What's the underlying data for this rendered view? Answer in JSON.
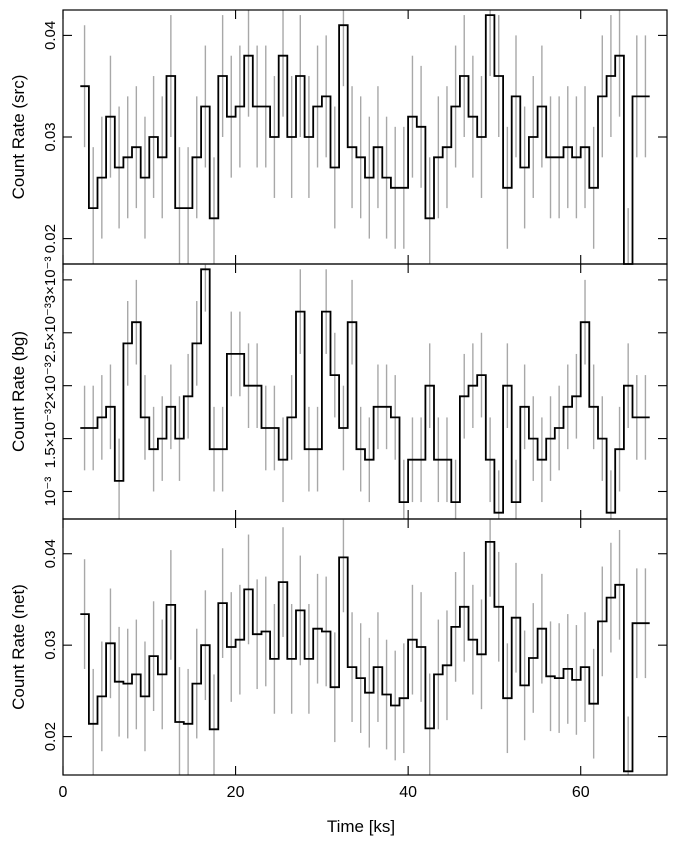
{
  "figure": {
    "xlabel": "Time [ks]"
  },
  "chart_data": [
    {
      "type": "line",
      "step": true,
      "ylabel": "Count Rate (src)",
      "xlim": [
        0,
        70
      ],
      "ylim": [
        0.0175,
        0.0425
      ],
      "yticks": [
        0.02,
        0.03,
        0.04
      ],
      "ytick_labels": [
        "0.02",
        "0.03",
        "0.04"
      ],
      "xticks": [
        0,
        20,
        40,
        60
      ],
      "xtick_labels": [
        "0",
        "20",
        "40",
        "60"
      ],
      "show_xtick_labels": false,
      "bin_width_ks": 1,
      "series": [
        {
          "x": [
            2.5,
            3.5,
            4.5,
            5.5,
            6.5,
            7.5,
            8.5,
            9.5,
            10.5,
            11.5,
            12.5,
            13.5,
            14.5,
            15.5,
            16.5,
            17.5,
            18.5,
            19.5,
            20.5,
            21.5,
            22.5,
            23.5,
            24.5,
            25.5,
            26.5,
            27.5,
            28.5,
            29.5,
            30.5,
            31.5,
            32.5,
            33.5,
            34.5,
            35.5,
            36.5,
            37.5,
            38.5,
            39.5,
            40.5,
            41.5,
            42.5,
            43.5,
            44.5,
            45.5,
            46.5,
            47.5,
            48.5,
            49.5,
            50.5,
            51.5,
            52.5,
            53.5,
            54.5,
            55.5,
            56.5,
            57.5,
            58.5,
            59.5,
            60.5,
            61.5,
            62.5,
            63.5,
            64.5,
            65.5,
            66.5,
            67.5
          ],
          "y": [
            0.035,
            0.023,
            0.026,
            0.032,
            0.027,
            0.028,
            0.029,
            0.026,
            0.03,
            0.028,
            0.036,
            0.023,
            0.023,
            0.028,
            0.033,
            0.022,
            0.036,
            0.032,
            0.033,
            0.038,
            0.033,
            0.033,
            0.03,
            0.038,
            0.03,
            0.036,
            0.03,
            0.033,
            0.034,
            0.027,
            0.041,
            0.029,
            0.028,
            0.026,
            0.029,
            0.026,
            0.025,
            0.025,
            0.032,
            0.031,
            0.022,
            0.028,
            0.029,
            0.033,
            0.036,
            0.032,
            0.03,
            0.042,
            0.036,
            0.025,
            0.034,
            0.027,
            0.03,
            0.033,
            0.028,
            0.028,
            0.029,
            0.028,
            0.029,
            0.025,
            0.034,
            0.036,
            0.038,
            0.017,
            0.034,
            0.034
          ],
          "err": [
            0.006,
            0.006,
            0.006,
            0.006,
            0.006,
            0.006,
            0.006,
            0.006,
            0.006,
            0.006,
            0.006,
            0.006,
            0.006,
            0.006,
            0.006,
            0.006,
            0.006,
            0.006,
            0.006,
            0.006,
            0.006,
            0.006,
            0.006,
            0.006,
            0.006,
            0.006,
            0.006,
            0.006,
            0.006,
            0.006,
            0.006,
            0.006,
            0.006,
            0.006,
            0.006,
            0.006,
            0.006,
            0.006,
            0.006,
            0.006,
            0.006,
            0.006,
            0.006,
            0.006,
            0.006,
            0.006,
            0.006,
            0.006,
            0.006,
            0.006,
            0.006,
            0.006,
            0.006,
            0.006,
            0.006,
            0.006,
            0.006,
            0.006,
            0.006,
            0.006,
            0.006,
            0.006,
            0.006,
            0.006,
            0.006,
            0.006
          ]
        }
      ]
    },
    {
      "type": "line",
      "step": true,
      "ylabel": "Count Rate (bg)",
      "xlim": [
        0,
        70
      ],
      "ylim": [
        0.00074,
        0.00315
      ],
      "yticks": [
        0.001,
        0.0015,
        0.002,
        0.0025,
        0.003
      ],
      "ytick_labels": [
        "10⁻³",
        "1.5×10⁻³",
        "2×10⁻³",
        "2.5×10⁻³",
        "3×10⁻³"
      ],
      "xticks": [
        0,
        20,
        40,
        60
      ],
      "xtick_labels": [
        "0",
        "20",
        "40",
        "60"
      ],
      "show_xtick_labels": false,
      "bin_width_ks": 1,
      "series": [
        {
          "x": [
            2.5,
            3.5,
            4.5,
            5.5,
            6.5,
            7.5,
            8.5,
            9.5,
            10.5,
            11.5,
            12.5,
            13.5,
            14.5,
            15.5,
            16.5,
            17.5,
            18.5,
            19.5,
            20.5,
            21.5,
            22.5,
            23.5,
            24.5,
            25.5,
            26.5,
            27.5,
            28.5,
            29.5,
            30.5,
            31.5,
            32.5,
            33.5,
            34.5,
            35.5,
            36.5,
            37.5,
            38.5,
            39.5,
            40.5,
            41.5,
            42.5,
            43.5,
            44.5,
            45.5,
            46.5,
            47.5,
            48.5,
            49.5,
            50.5,
            51.5,
            52.5,
            53.5,
            54.5,
            55.5,
            56.5,
            57.5,
            58.5,
            59.5,
            60.5,
            61.5,
            62.5,
            63.5,
            64.5,
            65.5,
            66.5,
            67.5
          ],
          "y": [
            0.0016,
            0.0016,
            0.0017,
            0.0018,
            0.0011,
            0.0024,
            0.0026,
            0.0017,
            0.0014,
            0.0015,
            0.0018,
            0.0015,
            0.0019,
            0.0024,
            0.0031,
            0.0014,
            0.0014,
            0.0023,
            0.0023,
            0.002,
            0.002,
            0.0016,
            0.0016,
            0.0013,
            0.0017,
            0.0027,
            0.0014,
            0.0014,
            0.0027,
            0.0021,
            0.0016,
            0.0026,
            0.0014,
            0.0013,
            0.0018,
            0.0018,
            0.0017,
            0.0009,
            0.0013,
            0.0013,
            0.002,
            0.0013,
            0.0013,
            0.0009,
            0.0019,
            0.002,
            0.0021,
            0.0013,
            0.0008,
            0.002,
            0.0009,
            0.0018,
            0.0015,
            0.0013,
            0.0015,
            0.0016,
            0.0018,
            0.0019,
            0.0026,
            0.0018,
            0.0015,
            0.0008,
            0.0014,
            0.002,
            0.0017,
            0.0017
          ],
          "err": [
            0.0004,
            0.0004,
            0.0004,
            0.0004,
            0.0004,
            0.0004,
            0.0004,
            0.0004,
            0.0004,
            0.0004,
            0.0004,
            0.0004,
            0.0004,
            0.0004,
            0.0004,
            0.0004,
            0.0004,
            0.0004,
            0.0004,
            0.0004,
            0.0004,
            0.0004,
            0.0004,
            0.0004,
            0.0004,
            0.0004,
            0.0004,
            0.0004,
            0.0004,
            0.0004,
            0.0004,
            0.0004,
            0.0004,
            0.0004,
            0.0004,
            0.0004,
            0.0004,
            0.0004,
            0.0004,
            0.0004,
            0.0004,
            0.0004,
            0.0004,
            0.0004,
            0.0004,
            0.0004,
            0.0004,
            0.0004,
            0.0004,
            0.0004,
            0.0004,
            0.0004,
            0.0004,
            0.0004,
            0.0004,
            0.0004,
            0.0004,
            0.0004,
            0.0004,
            0.0004,
            0.0004,
            0.0004,
            0.0004,
            0.0004,
            0.0004,
            0.0004
          ]
        }
      ]
    },
    {
      "type": "line",
      "step": true,
      "ylabel": "Count Rate (net)",
      "xlim": [
        0,
        70
      ],
      "ylim": [
        0.0158,
        0.0438
      ],
      "yticks": [
        0.02,
        0.03,
        0.04
      ],
      "ytick_labels": [
        "0.02",
        "0.03",
        "0.04"
      ],
      "xticks": [
        0,
        20,
        40,
        60
      ],
      "xtick_labels": [
        "0",
        "20",
        "40",
        "60"
      ],
      "show_xtick_labels": true,
      "bin_width_ks": 1,
      "series": [
        {
          "x": [
            2.5,
            3.5,
            4.5,
            5.5,
            6.5,
            7.5,
            8.5,
            9.5,
            10.5,
            11.5,
            12.5,
            13.5,
            14.5,
            15.5,
            16.5,
            17.5,
            18.5,
            19.5,
            20.5,
            21.5,
            22.5,
            23.5,
            24.5,
            25.5,
            26.5,
            27.5,
            28.5,
            29.5,
            30.5,
            31.5,
            32.5,
            33.5,
            34.5,
            35.5,
            36.5,
            37.5,
            38.5,
            39.5,
            40.5,
            41.5,
            42.5,
            43.5,
            44.5,
            45.5,
            46.5,
            47.5,
            48.5,
            49.5,
            50.5,
            51.5,
            52.5,
            53.5,
            54.5,
            55.5,
            56.5,
            57.5,
            58.5,
            59.5,
            60.5,
            61.5,
            62.5,
            63.5,
            64.5,
            65.5,
            66.5,
            67.5
          ],
          "y": [
            0.0334,
            0.0214,
            0.0244,
            0.0302,
            0.026,
            0.0258,
            0.0268,
            0.0244,
            0.0288,
            0.0268,
            0.0344,
            0.0216,
            0.0214,
            0.0258,
            0.03,
            0.0208,
            0.0346,
            0.0298,
            0.0306,
            0.0361,
            0.0312,
            0.0315,
            0.0285,
            0.0369,
            0.0285,
            0.0338,
            0.0285,
            0.0318,
            0.0315,
            0.0254,
            0.0396,
            0.0276,
            0.0264,
            0.0248,
            0.0276,
            0.0246,
            0.0234,
            0.0242,
            0.0306,
            0.0298,
            0.0209,
            0.0268,
            0.0278,
            0.032,
            0.0342,
            0.0306,
            0.029,
            0.0413,
            0.0342,
            0.0242,
            0.033,
            0.0256,
            0.0286,
            0.0318,
            0.0266,
            0.0264,
            0.0274,
            0.0262,
            0.0276,
            0.0236,
            0.0326,
            0.0352,
            0.0366,
            0.0162,
            0.0324,
            0.0324
          ],
          "err": [
            0.006,
            0.006,
            0.006,
            0.006,
            0.006,
            0.006,
            0.006,
            0.006,
            0.006,
            0.006,
            0.006,
            0.006,
            0.006,
            0.006,
            0.006,
            0.006,
            0.006,
            0.006,
            0.006,
            0.006,
            0.006,
            0.006,
            0.006,
            0.006,
            0.006,
            0.006,
            0.006,
            0.006,
            0.006,
            0.006,
            0.006,
            0.006,
            0.006,
            0.006,
            0.006,
            0.006,
            0.006,
            0.006,
            0.006,
            0.006,
            0.006,
            0.006,
            0.006,
            0.006,
            0.006,
            0.006,
            0.006,
            0.006,
            0.006,
            0.006,
            0.006,
            0.006,
            0.006,
            0.006,
            0.006,
            0.006,
            0.006,
            0.006,
            0.006,
            0.006,
            0.006,
            0.006,
            0.006,
            0.006,
            0.006,
            0.006
          ]
        }
      ]
    }
  ]
}
